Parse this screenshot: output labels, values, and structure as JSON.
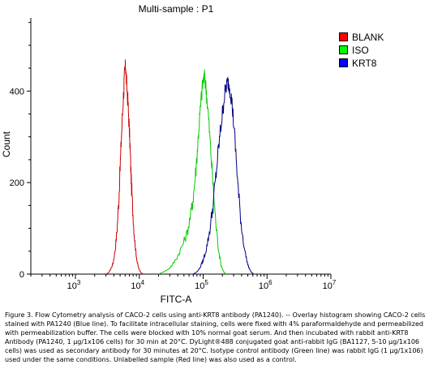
{
  "chart_data": {
    "type": "histogram",
    "title": "Multi-sample : P1",
    "xlabel": "FITC-A",
    "ylabel": "Count",
    "x_scale": "log",
    "xlim": [
      200,
      10000000
    ],
    "ylim": [
      0,
      560
    ],
    "x_ticks": [
      {
        "value": 1000,
        "base": "10",
        "exp": "3"
      },
      {
        "value": 10000,
        "base": "10",
        "exp": "4"
      },
      {
        "value": 100000,
        "base": "10",
        "exp": "5"
      },
      {
        "value": 1000000,
        "base": "10",
        "exp": "6"
      },
      {
        "value": 10000000,
        "base": "10",
        "exp": "7"
      }
    ],
    "y_ticks": [
      "0",
      "200",
      "400"
    ],
    "y_tick_values": [
      0,
      200,
      400
    ],
    "legend_position": "right",
    "series": [
      {
        "name": "BLANK",
        "color": "#cc0000",
        "swatch": "#ff0000",
        "points": [
          [
            3000,
            0
          ],
          [
            3300,
            3
          ],
          [
            3600,
            12
          ],
          [
            3900,
            25
          ],
          [
            4200,
            55
          ],
          [
            4500,
            100
          ],
          [
            4800,
            170
          ],
          [
            5100,
            260
          ],
          [
            5400,
            340
          ],
          [
            5700,
            400
          ],
          [
            5900,
            440
          ],
          [
            6100,
            455
          ],
          [
            6300,
            420
          ],
          [
            6600,
            380
          ],
          [
            6900,
            330
          ],
          [
            7200,
            270
          ],
          [
            7500,
            200
          ],
          [
            7900,
            140
          ],
          [
            8300,
            90
          ],
          [
            8800,
            50
          ],
          [
            9300,
            25
          ],
          [
            9800,
            12
          ],
          [
            10500,
            4
          ],
          [
            11500,
            0
          ]
        ]
      },
      {
        "name": "ISO",
        "color": "#00cc00",
        "swatch": "#00ff00",
        "points": [
          [
            20000,
            0
          ],
          [
            24000,
            5
          ],
          [
            28000,
            10
          ],
          [
            33000,
            20
          ],
          [
            40000,
            40
          ],
          [
            48000,
            65
          ],
          [
            56000,
            90
          ],
          [
            64000,
            130
          ],
          [
            70000,
            170
          ],
          [
            76000,
            220
          ],
          [
            82000,
            280
          ],
          [
            88000,
            340
          ],
          [
            94000,
            390
          ],
          [
            100000,
            425
          ],
          [
            106000,
            430
          ],
          [
            112000,
            400
          ],
          [
            120000,
            350
          ],
          [
            130000,
            280
          ],
          [
            142000,
            200
          ],
          [
            156000,
            120
          ],
          [
            172000,
            60
          ],
          [
            190000,
            20
          ],
          [
            210000,
            5
          ],
          [
            230000,
            0
          ]
        ]
      },
      {
        "name": "KRT8",
        "color": "#000080",
        "swatch": "#0000ff",
        "points": [
          [
            70000,
            0
          ],
          [
            80000,
            5
          ],
          [
            90000,
            15
          ],
          [
            100000,
            30
          ],
          [
            112000,
            55
          ],
          [
            125000,
            90
          ],
          [
            140000,
            140
          ],
          [
            155000,
            200
          ],
          [
            170000,
            260
          ],
          [
            185000,
            310
          ],
          [
            200000,
            350
          ],
          [
            215000,
            390
          ],
          [
            230000,
            410
          ],
          [
            245000,
            420
          ],
          [
            260000,
            410
          ],
          [
            280000,
            380
          ],
          [
            300000,
            330
          ],
          [
            330000,
            250
          ],
          [
            360000,
            170
          ],
          [
            400000,
            100
          ],
          [
            450000,
            50
          ],
          [
            500000,
            20
          ],
          [
            560000,
            5
          ],
          [
            620000,
            0
          ]
        ]
      }
    ]
  },
  "caption": "Figure 3. Flow Cytometry analysis of CACO-2 cells using anti-KRT8 antibody (PA1240).  -- Overlay histogram showing CACO-2 cells stained with PA1240 (Blue line). To facilitate intracellular staining, cells were fixed with 4% paraformaldehyde and permeabilized with permeabilization buffer. The cells were blocked with 10% normal goat serum. And then incubated with rabbit anti-KRT8 Antibody (PA1240, 1 μg/1x106 cells) for 30 min at 20°C. DyLight®488 conjugated goat anti-rabbit IgG (BA1127, 5-10 μg/1x106 cells) was used as secondary antibody for 30 minutes at 20°C. Isotype control antibody (Green line) was rabbit IgG (1 μg/1x106) used under the same conditions. Unlabelled sample (Red line) was also used as a control."
}
